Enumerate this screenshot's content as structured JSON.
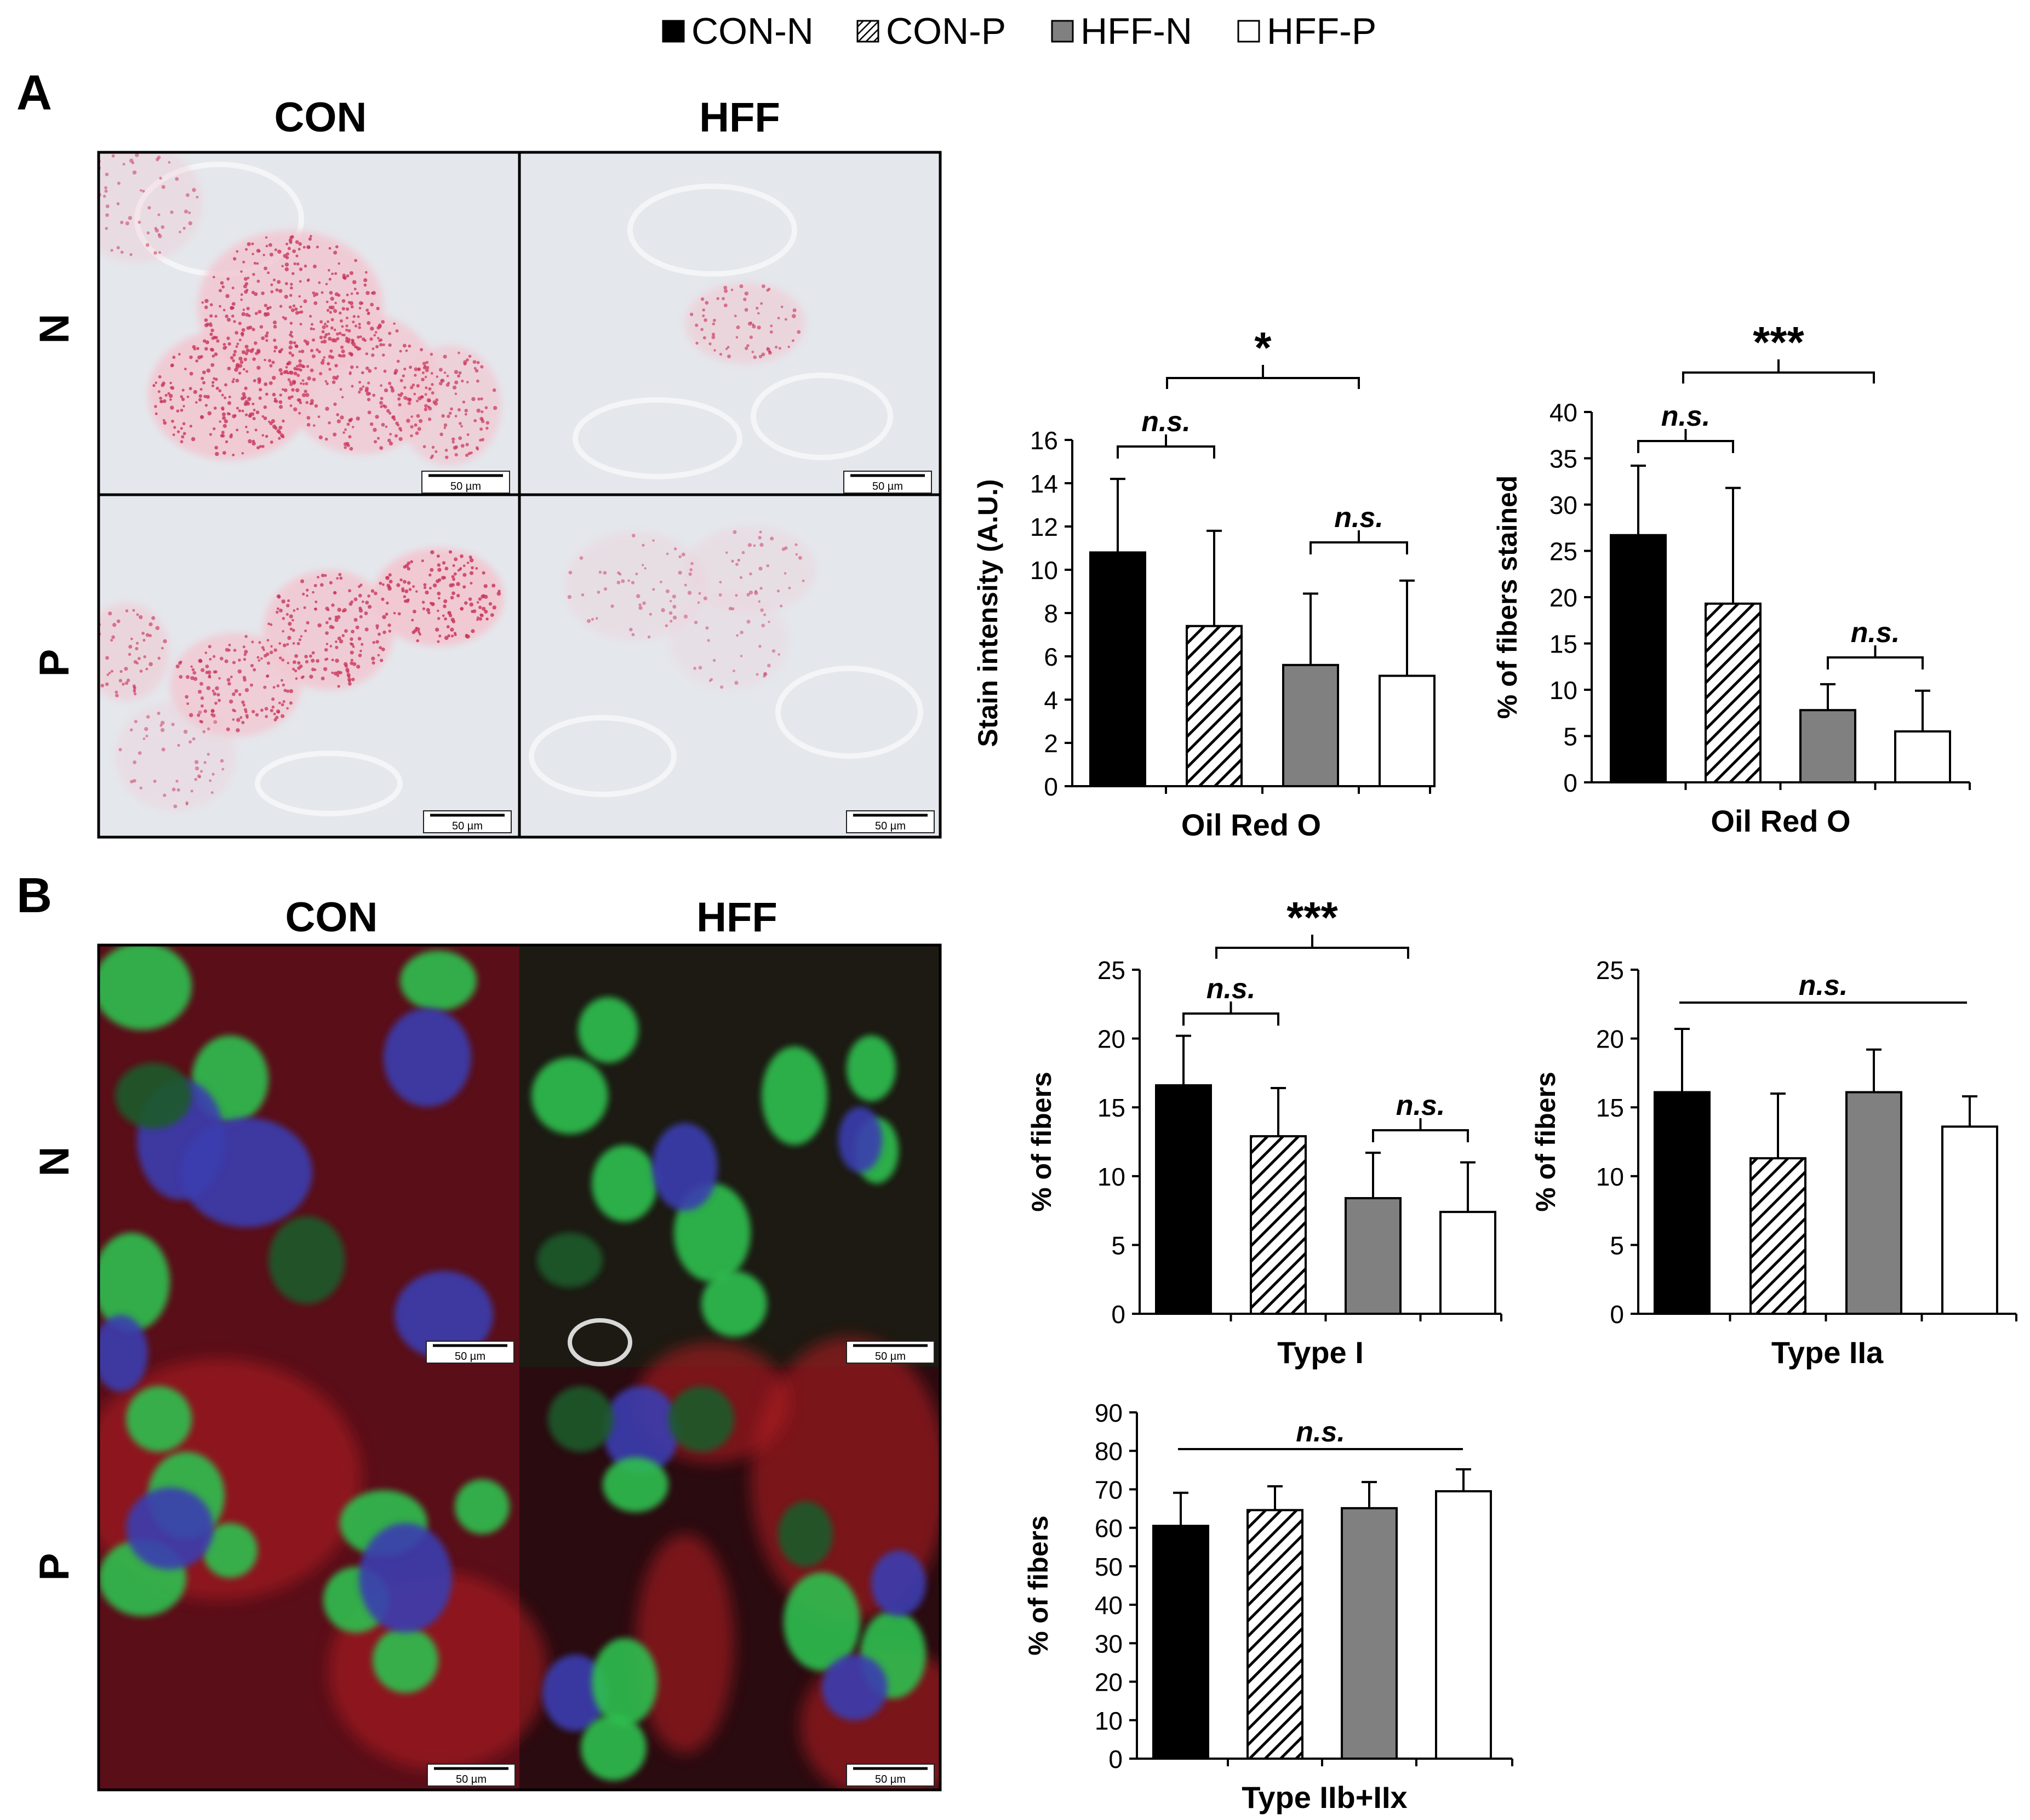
{
  "legend": {
    "items": [
      {
        "label": "CON-N",
        "pattern": "black"
      },
      {
        "label": "CON-P",
        "pattern": "hatch"
      },
      {
        "label": "HFF-N",
        "pattern": "gray"
      },
      {
        "label": "HFF-P",
        "pattern": "white"
      }
    ]
  },
  "colors": {
    "con_n": "#000000",
    "hff_n": "#808080",
    "hff_p": "#ffffff",
    "oil_red_bg": "#e6e8ec",
    "oil_red_stain": "#c8345a",
    "if_red": "#8a1420",
    "if_green": "#2fbf50",
    "if_blue": "#3a3cb0"
  },
  "panel_a": {
    "letter": "A",
    "col_labels": [
      "CON",
      "HFF"
    ],
    "row_labels": [
      "N",
      "P"
    ],
    "scale_bar": "50 µm"
  },
  "panel_b": {
    "letter": "B",
    "col_labels": [
      "CON",
      "HFF"
    ],
    "row_labels": [
      "N",
      "P"
    ],
    "scale_bar": "50 µm"
  },
  "chart_data": [
    {
      "type": "bar",
      "categories": [
        "CON-N",
        "CON-P",
        "HFF-N",
        "HFF-P"
      ],
      "values": [
        10.8,
        7.4,
        5.6,
        5.1
      ],
      "errors": [
        3.4,
        4.4,
        3.3,
        4.4
      ],
      "xlabel": "Oil Red O",
      "ylabel": "Stain intensity (A.U.)",
      "ylim": [
        0,
        16
      ],
      "yticks": [
        0,
        2,
        4,
        6,
        8,
        10,
        12,
        14,
        16
      ],
      "annotations": [
        {
          "label": "n.s.",
          "pair": [
            0,
            1
          ]
        },
        {
          "label": "n.s.",
          "pair": [
            2,
            3
          ]
        },
        {
          "label": "*",
          "group": true
        }
      ]
    },
    {
      "type": "bar",
      "categories": [
        "CON-N",
        "CON-P",
        "HFF-N",
        "HFF-P"
      ],
      "values": [
        26.7,
        19.3,
        7.8,
        5.5
      ],
      "errors": [
        7.5,
        12.5,
        2.8,
        4.4
      ],
      "xlabel": "Oil Red O",
      "ylabel": "% of fibers stained",
      "ylim": [
        0,
        40
      ],
      "yticks": [
        0,
        5,
        10,
        15,
        20,
        25,
        30,
        35,
        40
      ],
      "annotations": [
        {
          "label": "n.s.",
          "pair": [
            0,
            1
          ]
        },
        {
          "label": "n.s.",
          "pair": [
            2,
            3
          ]
        },
        {
          "label": "***",
          "group": true
        }
      ]
    },
    {
      "type": "bar",
      "categories": [
        "CON-N",
        "CON-P",
        "HFF-N",
        "HFF-P"
      ],
      "values": [
        16.6,
        12.9,
        8.4,
        7.4
      ],
      "errors": [
        3.6,
        3.5,
        3.3,
        3.6
      ],
      "xlabel": "Type I",
      "ylabel": "% of fibers",
      "ylim": [
        0,
        25
      ],
      "yticks": [
        0,
        5,
        10,
        15,
        20,
        25
      ],
      "annotations": [
        {
          "label": "n.s.",
          "pair": [
            0,
            1
          ]
        },
        {
          "label": "n.s.",
          "pair": [
            2,
            3
          ]
        },
        {
          "label": "***",
          "group": true
        }
      ]
    },
    {
      "type": "bar",
      "categories": [
        "CON-N",
        "CON-P",
        "HFF-N",
        "HFF-P"
      ],
      "values": [
        16.1,
        11.3,
        16.1,
        13.6
      ],
      "errors": [
        4.6,
        4.7,
        3.1,
        2.2
      ],
      "xlabel": "Type IIa",
      "ylabel": "% of fibers",
      "ylim": [
        0,
        25
      ],
      "yticks": [
        0,
        5,
        10,
        15,
        20,
        25
      ],
      "annotations": [
        {
          "label": "n.s.",
          "line": true
        }
      ]
    },
    {
      "type": "bar",
      "categories": [
        "CON-N",
        "CON-P",
        "HFF-N",
        "HFF-P"
      ],
      "values": [
        60.5,
        64.6,
        65.1,
        69.5
      ],
      "errors": [
        8.6,
        6.2,
        6.8,
        5.7
      ],
      "xlabel": "Type IIb+IIx",
      "ylabel": "% of fibers",
      "ylim": [
        0,
        90
      ],
      "yticks": [
        0,
        10,
        20,
        30,
        40,
        50,
        60,
        70,
        80,
        90
      ],
      "annotations": [
        {
          "label": "n.s.",
          "line": true
        }
      ]
    }
  ]
}
